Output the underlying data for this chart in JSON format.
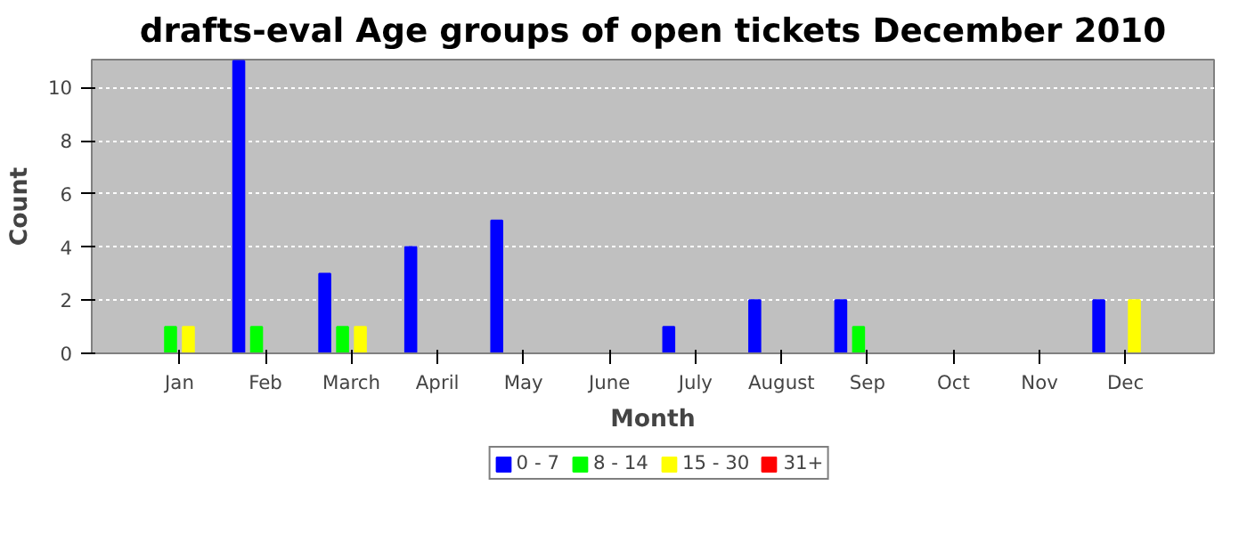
{
  "chart_data": {
    "type": "bar",
    "title": "drafts-eval Age groups of open tickets December 2010",
    "xlabel": "Month",
    "ylabel": "Count",
    "categories": [
      "Jan",
      "Feb",
      "March",
      "April",
      "May",
      "June",
      "July",
      "August",
      "Sep",
      "Oct",
      "Nov",
      "Dec"
    ],
    "series": [
      {
        "name": "0 - 7",
        "color": "#0000ff",
        "values": [
          0,
          11,
          3,
          4,
          5,
          0,
          1,
          2,
          2,
          0,
          0,
          2
        ]
      },
      {
        "name": "8 - 14",
        "color": "#00ff00",
        "values": [
          1,
          1,
          1,
          0,
          0,
          0,
          0,
          0,
          1,
          0,
          0,
          0
        ]
      },
      {
        "name": "15 - 30",
        "color": "#ffff00",
        "values": [
          1,
          0,
          1,
          0,
          0,
          0,
          0,
          0,
          0,
          0,
          0,
          2
        ]
      },
      {
        "name": "31+",
        "color": "#ff0000",
        "values": [
          0,
          0,
          0,
          0,
          0,
          0,
          0,
          0,
          0,
          0,
          0,
          0
        ]
      }
    ],
    "ylim": [
      0,
      11.05
    ],
    "yticks": [
      0,
      2,
      4,
      6,
      8,
      10
    ],
    "grid": "y",
    "legend": "bottom"
  }
}
